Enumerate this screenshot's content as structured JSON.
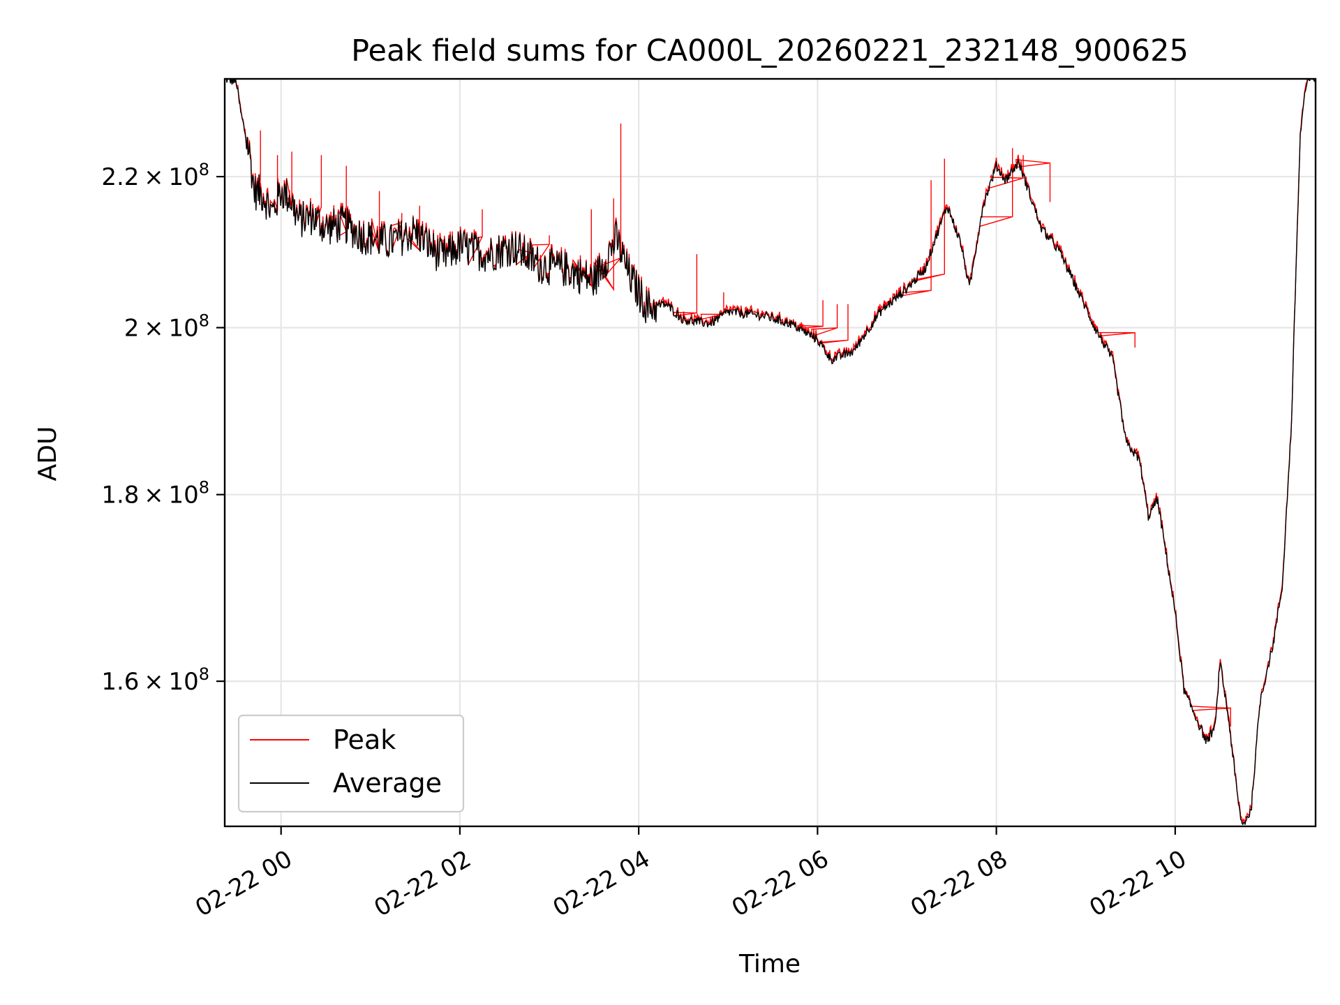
{
  "chart_data": {
    "type": "line",
    "title": "Peak field sums for CA000L_20260221_232148_900625",
    "xlabel": "Time",
    "ylabel": "ADU",
    "yscale": "log",
    "xlim_hours": [
      -0.63,
      11.57
    ],
    "ylim": [
      146000000,
      234000000
    ],
    "x_ticks": [
      {
        "hour": 0,
        "label": "02-22 00"
      },
      {
        "hour": 2,
        "label": "02-22 02"
      },
      {
        "hour": 4,
        "label": "02-22 04"
      },
      {
        "hour": 6,
        "label": "02-22 06"
      },
      {
        "hour": 8,
        "label": "02-22 08"
      },
      {
        "hour": 10,
        "label": "02-22 10"
      }
    ],
    "y_ticks": [
      {
        "value": 160000000,
        "mantissa": "1.6",
        "exponent": "8"
      },
      {
        "value": 180000000,
        "mantissa": "1.8",
        "exponent": "8"
      },
      {
        "value": 200000000,
        "mantissa": "2",
        "exponent": "8"
      },
      {
        "value": 220000000,
        "mantissa": "2.2",
        "exponent": "8"
      }
    ],
    "grid": true,
    "legend_position": "lower-left",
    "series": [
      {
        "name": "Peak",
        "color": "#ff0000"
      },
      {
        "name": "Average",
        "color": "#000000"
      }
    ],
    "average_profile": [
      [
        -0.63,
        234000000
      ],
      [
        -0.5,
        233500000
      ],
      [
        -0.45,
        229000000
      ],
      [
        -0.35,
        223000000
      ],
      [
        -0.3,
        218000000
      ],
      [
        -0.2,
        217500000
      ],
      [
        -0.1,
        215000000
      ],
      [
        0.0,
        218000000
      ],
      [
        0.1,
        217000000
      ],
      [
        0.2,
        214000000
      ],
      [
        0.35,
        214500000
      ],
      [
        0.5,
        213000000
      ],
      [
        0.7,
        213500000
      ],
      [
        0.9,
        212000000
      ],
      [
        1.2,
        211000000
      ],
      [
        1.5,
        212500000
      ],
      [
        1.8,
        209000000
      ],
      [
        2.0,
        210500000
      ],
      [
        2.3,
        209500000
      ],
      [
        2.6,
        210500000
      ],
      [
        2.9,
        208000000
      ],
      [
        3.2,
        207500000
      ],
      [
        3.5,
        206000000
      ],
      [
        3.75,
        211500000
      ],
      [
        3.9,
        206500000
      ],
      [
        4.1,
        202500000
      ],
      [
        4.3,
        203000000
      ],
      [
        4.5,
        201000000
      ],
      [
        4.8,
        200500000
      ],
      [
        5.0,
        202000000
      ],
      [
        5.4,
        201500000
      ],
      [
        5.7,
        200500000
      ],
      [
        6.0,
        198500000
      ],
      [
        6.15,
        196000000
      ],
      [
        6.4,
        197000000
      ],
      [
        6.7,
        202000000
      ],
      [
        7.0,
        205000000
      ],
      [
        7.2,
        207500000
      ],
      [
        7.45,
        216000000
      ],
      [
        7.6,
        211000000
      ],
      [
        7.7,
        205000000
      ],
      [
        7.85,
        216000000
      ],
      [
        8.0,
        221500000
      ],
      [
        8.1,
        219500000
      ],
      [
        8.25,
        222000000
      ],
      [
        8.5,
        213000000
      ],
      [
        8.7,
        210000000
      ],
      [
        8.9,
        205000000
      ],
      [
        9.1,
        200000000
      ],
      [
        9.3,
        196000000
      ],
      [
        9.45,
        186000000
      ],
      [
        9.6,
        184000000
      ],
      [
        9.7,
        177500000
      ],
      [
        9.8,
        179500000
      ],
      [
        10.0,
        167000000
      ],
      [
        10.1,
        159000000
      ],
      [
        10.2,
        157000000
      ],
      [
        10.35,
        154000000
      ],
      [
        10.45,
        155500000
      ],
      [
        10.5,
        162000000
      ],
      [
        10.6,
        156000000
      ],
      [
        10.7,
        148500000
      ],
      [
        10.75,
        146000000
      ],
      [
        10.85,
        147500000
      ],
      [
        10.95,
        158000000
      ],
      [
        11.1,
        164000000
      ],
      [
        11.2,
        170000000
      ],
      [
        11.3,
        188000000
      ],
      [
        11.4,
        226000000
      ],
      [
        11.45,
        232000000
      ],
      [
        11.5,
        234000000
      ],
      [
        11.57,
        234000000
      ]
    ],
    "peak_spikes": [
      [
        -0.37,
        225500000
      ],
      [
        -0.23,
        226500000
      ],
      [
        -0.04,
        223000000
      ],
      [
        0.12,
        223500000
      ],
      [
        0.45,
        223000000
      ],
      [
        0.73,
        221500000
      ],
      [
        1.1,
        218000000
      ],
      [
        1.35,
        215000000
      ],
      [
        1.55,
        216000000
      ],
      [
        2.25,
        215500000
      ],
      [
        2.8,
        211000000
      ],
      [
        3.0,
        212000000
      ],
      [
        3.47,
        215500000
      ],
      [
        3.8,
        227500000
      ],
      [
        3.72,
        217000000
      ],
      [
        4.65,
        209500000
      ],
      [
        4.95,
        204500000
      ],
      [
        6.06,
        203500000
      ],
      [
        6.22,
        203000000
      ],
      [
        6.34,
        203000000
      ],
      [
        7.27,
        219500000
      ],
      [
        7.42,
        222500000
      ],
      [
        8.18,
        224000000
      ],
      [
        8.3,
        223000000
      ],
      [
        8.6,
        216500000
      ],
      [
        9.55,
        197500000
      ],
      [
        10.62,
        155500000
      ]
    ]
  }
}
